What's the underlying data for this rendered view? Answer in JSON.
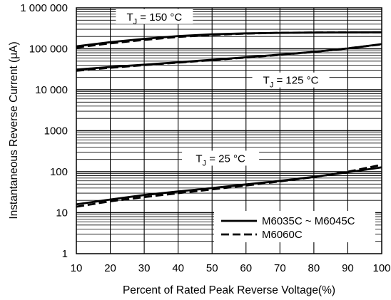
{
  "chart_data": {
    "type": "line",
    "xlabel": "Percent of Rated Peak Reverse Voltage(%)",
    "ylabel": "Instantaneous Reverse Current (μA)",
    "y_scale": "log",
    "xlim": [
      10,
      100
    ],
    "ylim": [
      1,
      1000000
    ],
    "x_ticks": [
      10,
      20,
      30,
      40,
      50,
      60,
      70,
      80,
      90,
      100
    ],
    "x_tick_labels": [
      "10",
      "20",
      "30",
      "40",
      "50",
      "60",
      "70",
      "80",
      "90",
      "100"
    ],
    "y_ticks": [
      1,
      10,
      100,
      1000,
      10000,
      100000,
      1000000
    ],
    "y_tick_labels": [
      "1",
      "10",
      "100",
      "1000",
      "10 000",
      "100 000",
      "1 000 000"
    ],
    "grid": true,
    "legend_position": "bottom-right",
    "legend": [
      {
        "label": "M6035C ~ M6045C",
        "style": "solid"
      },
      {
        "label": "M6060C",
        "style": "dashed"
      }
    ],
    "annotations": [
      {
        "prefix": "T",
        "sub": "J",
        "suffix": " = 150 °C"
      },
      {
        "prefix": "T",
        "sub": "J",
        "suffix": " = 125 °C"
      },
      {
        "prefix": "T",
        "sub": "J",
        "suffix": " = 25 °C"
      }
    ],
    "series": [
      {
        "group": "150",
        "style": "solid",
        "x": [
          10,
          20,
          30,
          40,
          50,
          60,
          70,
          80,
          90,
          100
        ],
        "y": [
          115000,
          145000,
          175000,
          205000,
          225000,
          238000,
          245000,
          249000,
          251000,
          252000
        ]
      },
      {
        "group": "150",
        "style": "dashed",
        "x": [
          10,
          20,
          30,
          40,
          50,
          60,
          70,
          80,
          90,
          100
        ],
        "y": [
          108000,
          136000,
          165000,
          195000,
          218000,
          236000,
          246000,
          250000,
          252000,
          253000
        ]
      },
      {
        "group": "125",
        "style": "solid",
        "x": [
          10,
          20,
          30,
          40,
          50,
          60,
          70,
          80,
          90,
          100
        ],
        "y": [
          31000,
          36000,
          41000,
          47000,
          54000,
          62000,
          72000,
          84000,
          102000,
          130000
        ]
      },
      {
        "group": "125",
        "style": "dashed",
        "x": [
          10,
          20,
          30,
          40,
          50,
          60,
          70,
          80,
          90,
          100
        ],
        "y": [
          29000,
          34500,
          40000,
          46000,
          53000,
          61000,
          71000,
          84000,
          103000,
          128000
        ]
      },
      {
        "group": "25",
        "style": "solid",
        "x": [
          10,
          20,
          30,
          40,
          50,
          60,
          70,
          80,
          90,
          100
        ],
        "y": [
          16,
          21,
          27,
          33,
          40,
          49,
          60,
          75,
          97,
          128
        ]
      },
      {
        "group": "25",
        "style": "dashed",
        "x": [
          10,
          20,
          30,
          40,
          50,
          60,
          70,
          80,
          90,
          100
        ],
        "y": [
          14,
          19,
          24,
          30,
          37,
          46,
          58,
          74,
          100,
          148
        ]
      }
    ]
  }
}
